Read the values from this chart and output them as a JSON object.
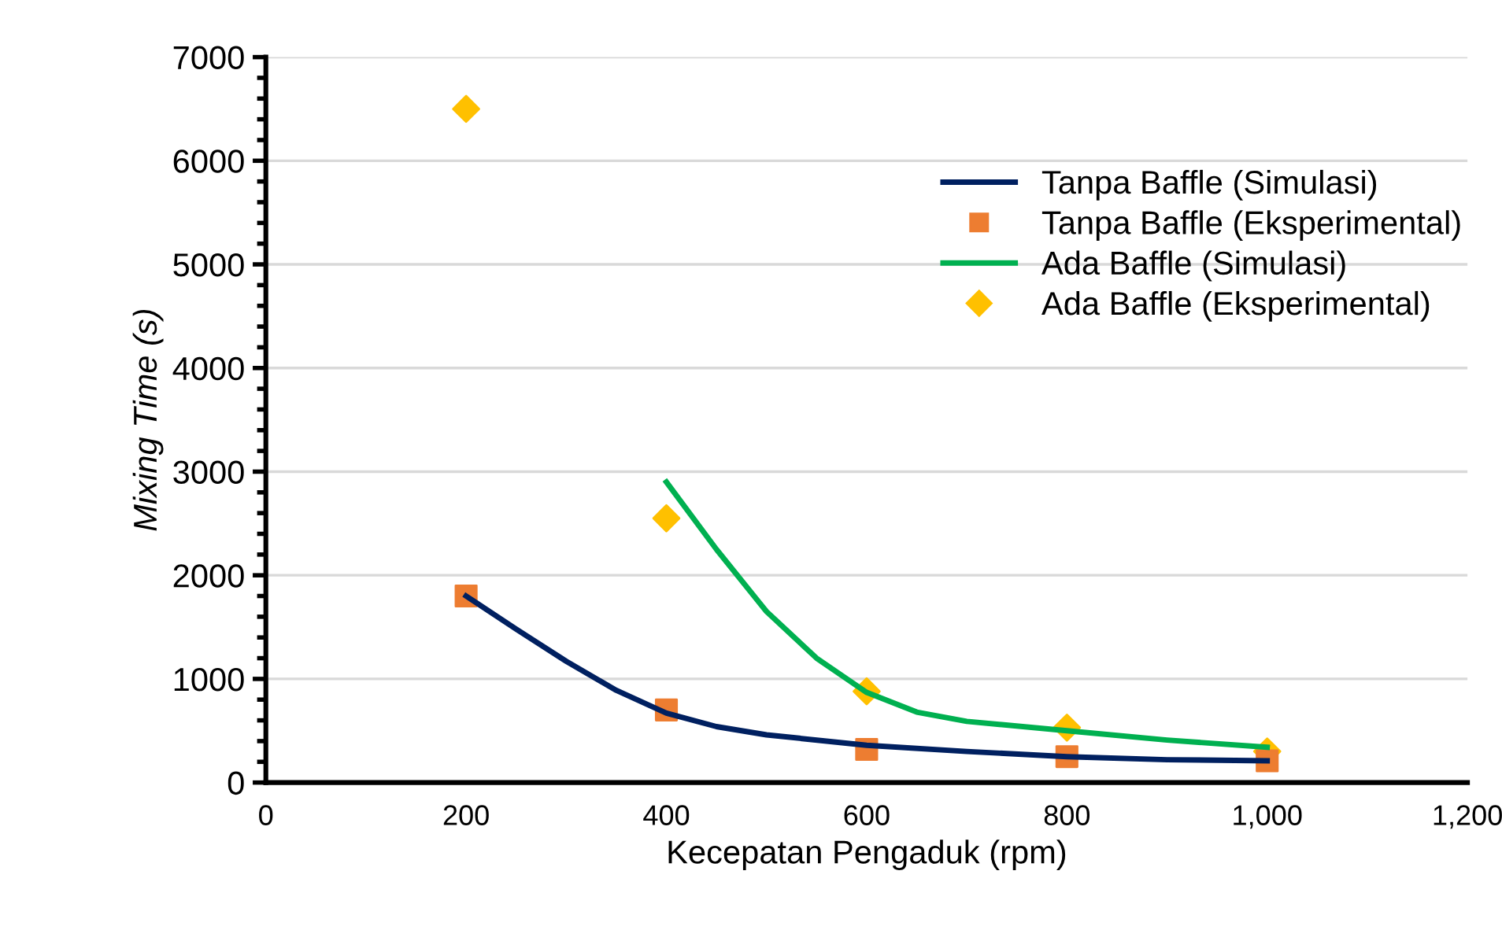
{
  "chart_data": {
    "type": "line",
    "xlabel": "Kecepatan Pengaduk (rpm)",
    "ylabel": "Mixing Time (s)",
    "xlim": [
      0,
      1200
    ],
    "xticks": [
      0,
      200,
      400,
      600,
      800,
      {
        "value": 1000,
        "label": "1,000"
      },
      {
        "value": 1200,
        "label": "1,200"
      }
    ],
    "ylim": [
      0,
      7000
    ],
    "yticks": [
      0,
      1000,
      2000,
      3000,
      4000,
      5000,
      6000,
      7000
    ],
    "grid": "y",
    "legend": "right",
    "series": [
      {
        "name": "Tanpa Baffle (Simulasi)",
        "color": "#002060",
        "marker": "none",
        "x": [
          200,
          250,
          300,
          350,
          400,
          450,
          500,
          600,
          700,
          800,
          900,
          1000
        ],
        "values": [
          1800,
          1480,
          1170,
          890,
          670,
          540,
          460,
          360,
          300,
          250,
          220,
          210
        ]
      },
      {
        "name": "Tanpa Baffle (Eksperimental)",
        "type": "scatter",
        "color": "#ed7d31",
        "marker": "square",
        "x": [
          200,
          400,
          600,
          800,
          1000
        ],
        "values": [
          1800,
          700,
          320,
          250,
          210
        ]
      },
      {
        "name": "Ada Baffle (Simulasi)",
        "color": "#00b050",
        "marker": "none",
        "x": [
          400,
          450,
          500,
          550,
          600,
          650,
          700,
          800,
          900,
          1000
        ],
        "values": [
          2900,
          2250,
          1650,
          1200,
          870,
          680,
          590,
          500,
          410,
          340
        ]
      },
      {
        "name": "Ada Baffle (Eksperimental)",
        "type": "scatter",
        "color": "#ffc000",
        "marker": "diamond",
        "x": [
          200,
          400,
          600,
          800,
          1000
        ],
        "values": [
          6500,
          2550,
          880,
          530,
          300
        ]
      }
    ]
  }
}
